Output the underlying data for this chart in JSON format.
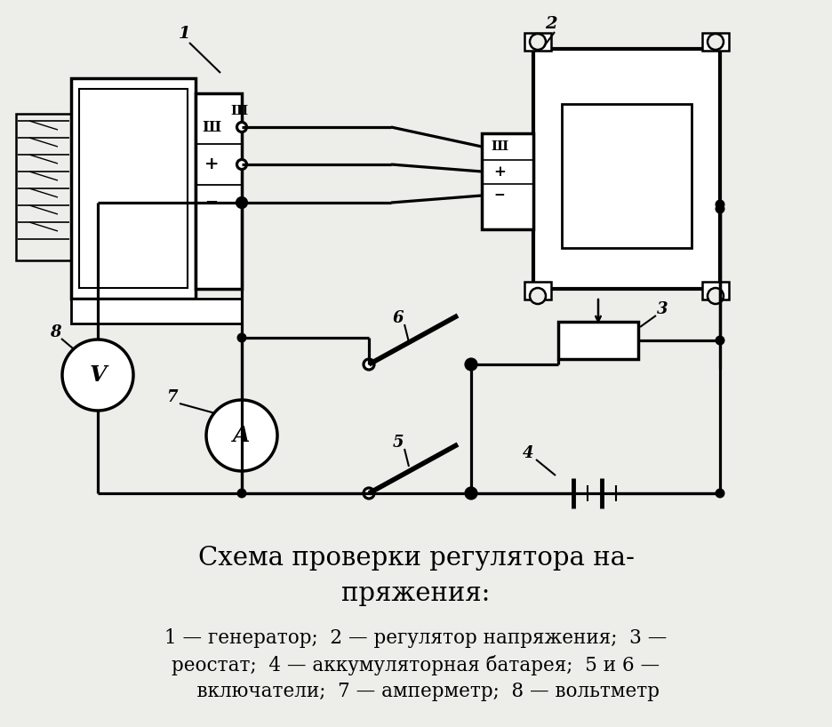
{
  "bg_color": "#ededea",
  "title": "Схема проверки регулятора на-\nпряжения:",
  "legend_line1": "1 — генератор;  2 — регулятор напряжения;  3 —",
  "legend_line2": "реостат;  4 — аккумуляторная батарея;  5 и 6 —",
  "legend_line3": "    включатели;  7 — амперметр;  8 — вольтметр",
  "title_fontsize": 21,
  "legend_fontsize": 15.5
}
